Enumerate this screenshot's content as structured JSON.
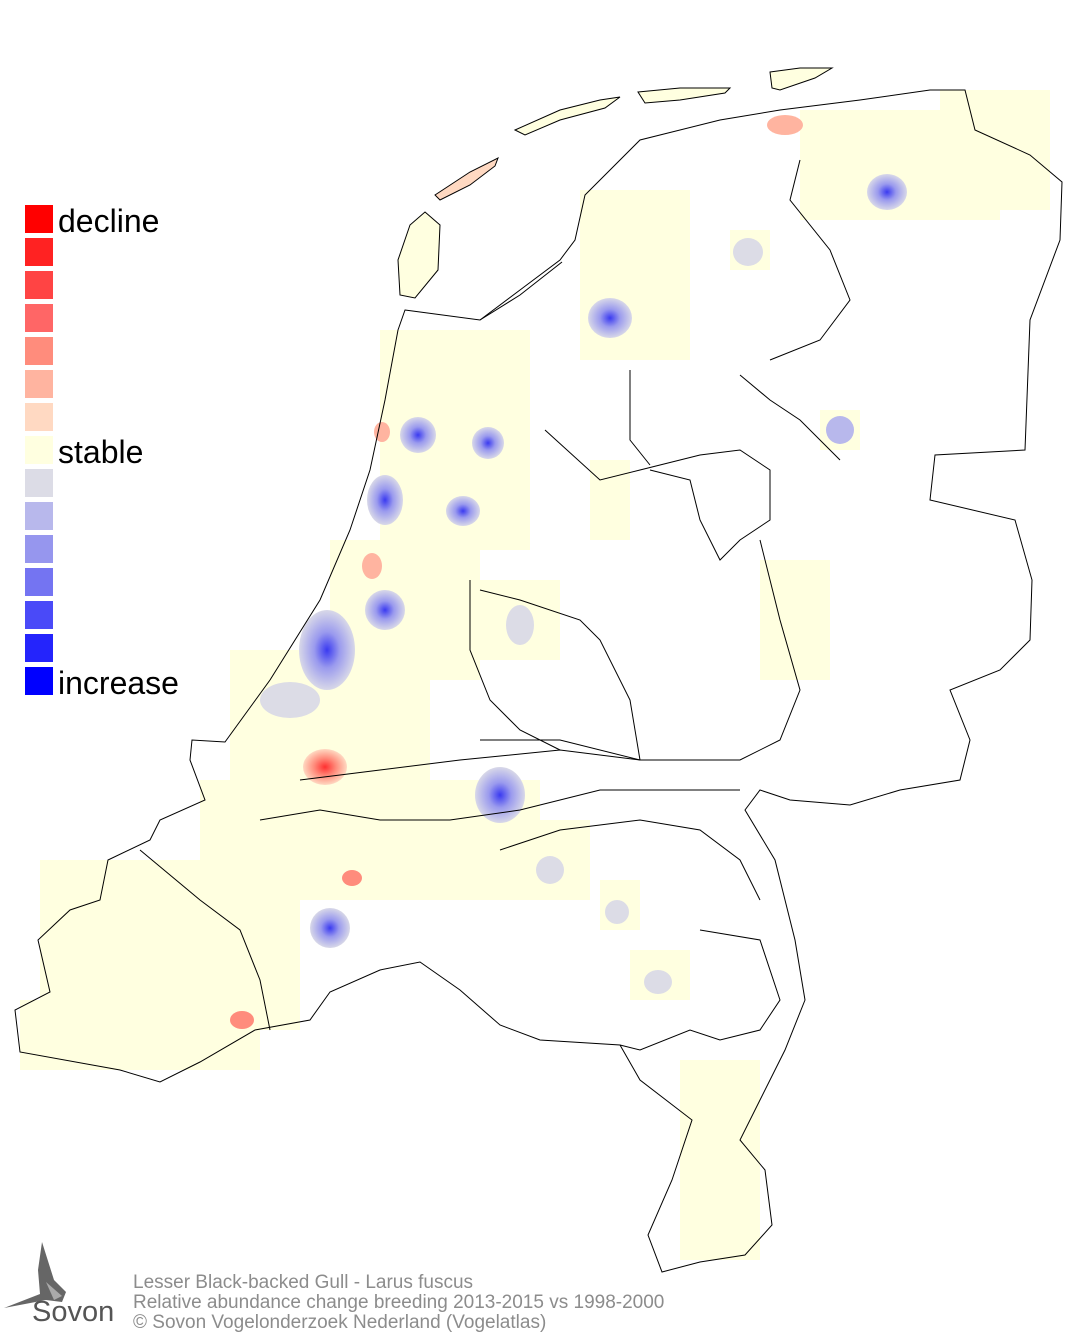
{
  "legend": {
    "colors": [
      "#ff0000",
      "#ff2222",
      "#ff4444",
      "#ff6666",
      "#ff8c7c",
      "#ffb4a0",
      "#ffd9c2",
      "#ffffe0",
      "#dcdce6",
      "#b8b8ec",
      "#9696ee",
      "#7474f2",
      "#4a4af8",
      "#2424fc",
      "#0000ff"
    ],
    "labels": {
      "top": "decline",
      "middle": "stable",
      "bottom": "increase"
    }
  },
  "caption": {
    "species": "Lesser Black-backed Gull - Larus fuscus",
    "description": "Relative abundance change breeding 2013-2015 vs 1998-2000",
    "copyright": "© Sovon Vogelonderzoek Nederland (Vogelatlas)"
  },
  "logo": {
    "text": "Sovon"
  },
  "map_colors": {
    "stable": "#ffffe0",
    "increase": "#4a4af8",
    "decline": "#ff4444",
    "border": "#000000"
  }
}
